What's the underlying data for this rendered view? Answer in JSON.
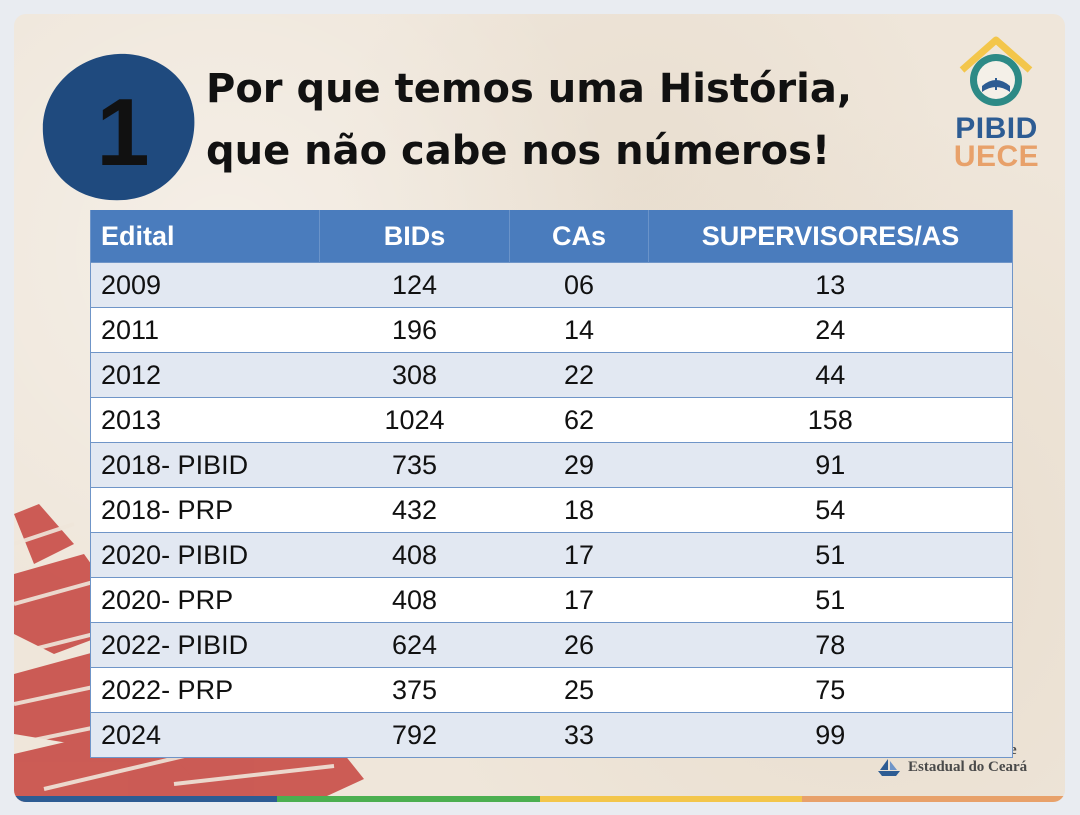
{
  "slide": {
    "badge_number": "1",
    "title_line1": "Por que temos uma História,",
    "title_line2": "que não cabe nos números!"
  },
  "logo": {
    "line1": "PIBID",
    "line2": "UECE",
    "colors": {
      "primary": "#2d5c93",
      "secondary": "#e8a16a",
      "accent": "#f3c64b"
    }
  },
  "footer": {
    "text": "Estadual do Ceará",
    "partial_text": "e"
  },
  "table": {
    "headers": [
      "Edital",
      "BIDs",
      "CAs",
      "SUPERVISORES/AS"
    ],
    "rows": [
      [
        "2009",
        "124",
        "06",
        "13"
      ],
      [
        "2011",
        "196",
        "14",
        "24"
      ],
      [
        "2012",
        "308",
        "22",
        "44"
      ],
      [
        "2013",
        "1024",
        "62",
        "158"
      ],
      [
        "2018- PIBID",
        "735",
        "29",
        "91"
      ],
      [
        "2018- PRP",
        "432",
        "18",
        "54"
      ],
      [
        "2020- PIBID",
        "408",
        "17",
        "51"
      ],
      [
        "2020- PRP",
        "408",
        "17",
        "51"
      ],
      [
        "2022- PIBID",
        "624",
        "26",
        "78"
      ],
      [
        "2022- PRP",
        "375",
        "25",
        "75"
      ],
      [
        "2024",
        "792",
        "33",
        "99"
      ]
    ]
  },
  "colors": {
    "header_bg": "#4a7cbd",
    "row_alt_bg": "#e2e8f2",
    "badge": "#1f4a7e",
    "decor_red": "#c9504a",
    "bottom_bar": [
      "#2d5c93",
      "#4caf50",
      "#f3c64b",
      "#e8a16a"
    ]
  }
}
